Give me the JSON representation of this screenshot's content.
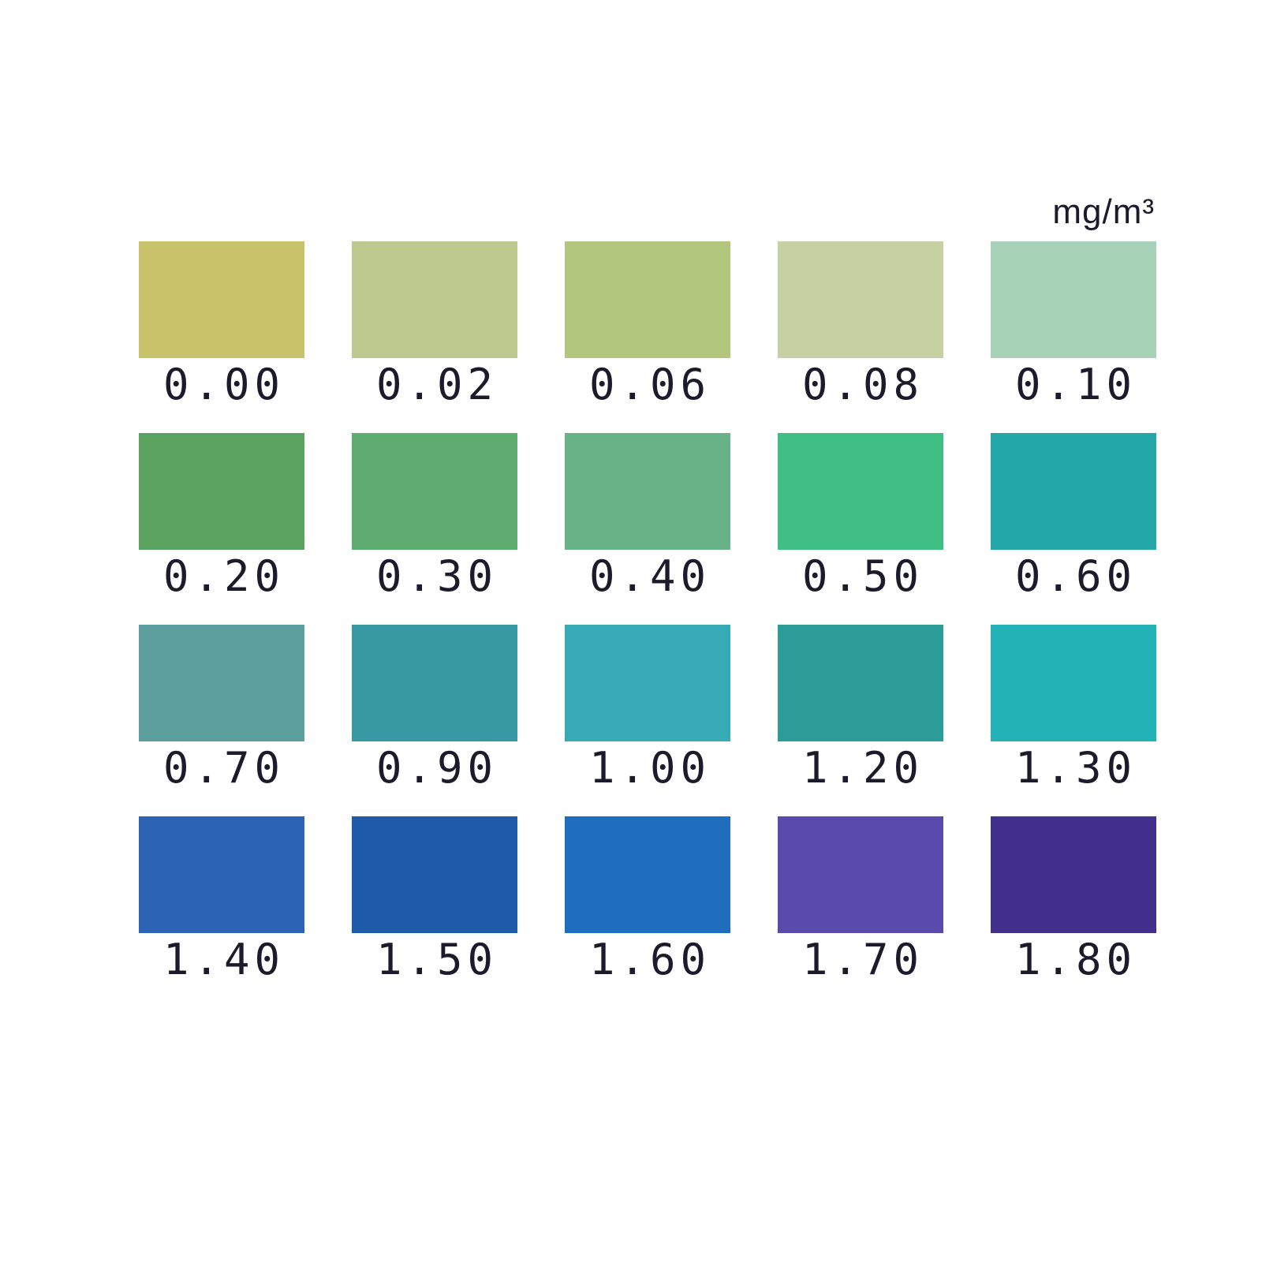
{
  "unit_label": "mg/m³",
  "text_color": "#1b1b2c",
  "background": "#ffffff",
  "chart_data": {
    "type": "heatmap",
    "unit": "mg/m³",
    "legend_position": "none",
    "grid": "off",
    "rows": [
      {
        "cells": [
          {
            "value": "0.00",
            "color": "#c8c26b"
          },
          {
            "value": "0.02",
            "color": "#bdca8f"
          },
          {
            "value": "0.06",
            "color": "#b3c67d"
          },
          {
            "value": "0.08",
            "color": "#c5d0a3"
          },
          {
            "value": "0.10",
            "color": "#a7d2b7"
          }
        ]
      },
      {
        "cells": [
          {
            "value": "0.20",
            "color": "#5ba261"
          },
          {
            "value": "0.30",
            "color": "#5fab70"
          },
          {
            "value": "0.40",
            "color": "#69b186"
          },
          {
            "value": "0.50",
            "color": "#3fbf84"
          },
          {
            "value": "0.60",
            "color": "#24a7a7"
          }
        ]
      },
      {
        "cells": [
          {
            "value": "0.70",
            "color": "#5d9f9d"
          },
          {
            "value": "0.90",
            "color": "#3999a3"
          },
          {
            "value": "1.00",
            "color": "#36aab5"
          },
          {
            "value": "1.20",
            "color": "#2c9c98"
          },
          {
            "value": "1.30",
            "color": "#23b3b7"
          }
        ]
      },
      {
        "cells": [
          {
            "value": "1.40",
            "color": "#2c63b5"
          },
          {
            "value": "1.50",
            "color": "#1f5aa8"
          },
          {
            "value": "1.60",
            "color": "#1e6dbf"
          },
          {
            "value": "1.70",
            "color": "#5a4aab"
          },
          {
            "value": "1.80",
            "color": "#42308d"
          }
        ]
      }
    ]
  }
}
